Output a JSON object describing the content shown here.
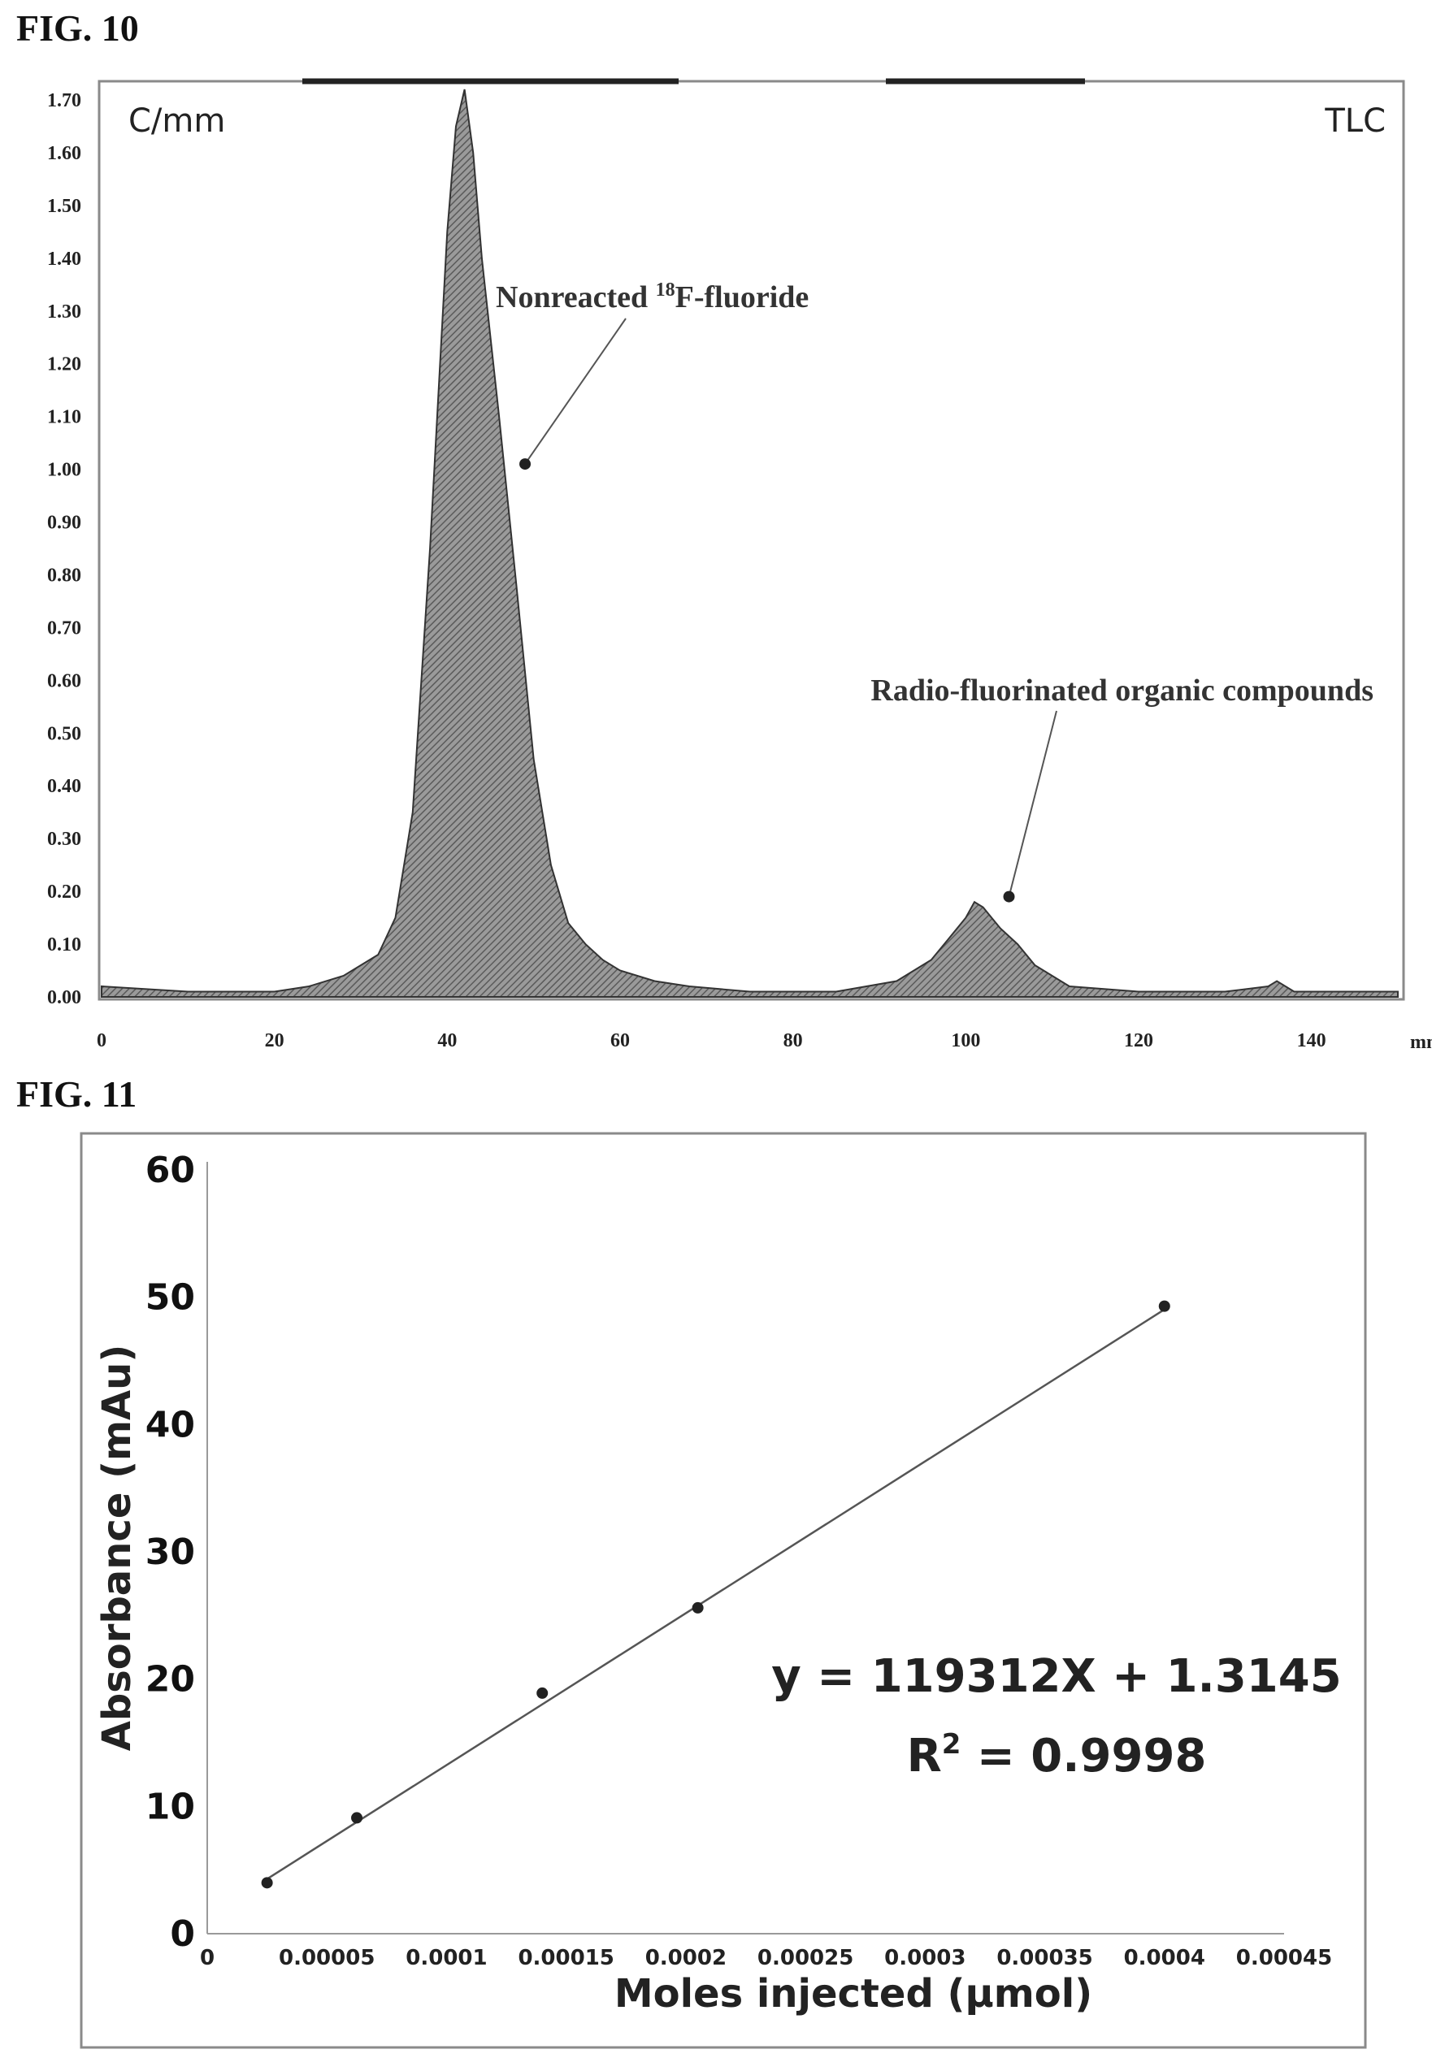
{
  "figures": {
    "fig10_label": "FIG. 10",
    "fig11_label": "FIG. 11"
  },
  "chart_data": [
    {
      "type": "area",
      "corner_left": "C/mm",
      "corner_right": "TLC",
      "x_unit": "mm",
      "xlim": [
        0,
        150
      ],
      "ylim": [
        0,
        1.72
      ],
      "x_ticks": [
        "0",
        "20",
        "40",
        "60",
        "80",
        "100",
        "120",
        "140"
      ],
      "y_ticks": [
        "0.00",
        "0.10",
        "0.20",
        "0.30",
        "0.40",
        "0.50",
        "0.60",
        "0.70",
        "0.80",
        "0.90",
        "1.00",
        "1.10",
        "1.20",
        "1.30",
        "1.40",
        "1.50",
        "1.60",
        "1.70"
      ],
      "grid": false,
      "series": [
        {
          "x": [
            0,
            10,
            20,
            24,
            28,
            32,
            34,
            36,
            38,
            40,
            41,
            42,
            43,
            44,
            46,
            48,
            50,
            52,
            54,
            56,
            58,
            60,
            64,
            68,
            75,
            85,
            92,
            96,
            98,
            100,
            101,
            102,
            103,
            104,
            106,
            108,
            112,
            120,
            130,
            135,
            136,
            138,
            150
          ],
          "y": [
            0.02,
            0.01,
            0.01,
            0.02,
            0.04,
            0.08,
            0.15,
            0.35,
            0.85,
            1.45,
            1.65,
            1.72,
            1.6,
            1.4,
            1.1,
            0.78,
            0.45,
            0.25,
            0.14,
            0.1,
            0.07,
            0.05,
            0.03,
            0.02,
            0.01,
            0.01,
            0.03,
            0.07,
            0.11,
            0.15,
            0.18,
            0.17,
            0.15,
            0.13,
            0.1,
            0.06,
            0.02,
            0.01,
            0.01,
            0.02,
            0.03,
            0.01,
            0.01
          ]
        }
      ],
      "annotations": [
        {
          "text_pre": "Nonreacted ",
          "sup": "18",
          "text_post": "F-fluoride",
          "points_to": {
            "x": 49,
            "y": 1.01
          }
        },
        {
          "text": "Radio-fluorinated organic compounds",
          "points_to": {
            "x": 105,
            "y": 0.19
          }
        }
      ]
    },
    {
      "type": "scatter",
      "xlabel": "Moles injected (µmol)",
      "ylabel": "Absorbance (mAu)",
      "xlim": [
        0,
        0.00045
      ],
      "ylim": [
        0,
        60
      ],
      "x_ticks": [
        "0",
        "0.00005",
        "0.0001",
        "0.00015",
        "0.0002",
        "0.00025",
        "0.0003",
        "0.00035",
        "0.0004",
        "0.00045"
      ],
      "y_ticks": [
        "0",
        "10",
        "20",
        "30",
        "40",
        "50",
        "60"
      ],
      "grid": false,
      "series": [
        {
          "x": [
            2.5e-05,
            6.25e-05,
            0.00014,
            0.000205,
            0.0004
          ],
          "y": [
            4.0,
            9.1,
            18.9,
            25.6,
            49.3
          ]
        }
      ],
      "trendline": {
        "slope": 119312,
        "intercept": 1.3145,
        "x_range": [
          2.5e-05,
          0.0004
        ]
      },
      "equation": "y = 119312X + 1.3145",
      "r2_prefix": "R",
      "r2_sup": "2",
      "r2_value": " = 0.9998"
    }
  ]
}
